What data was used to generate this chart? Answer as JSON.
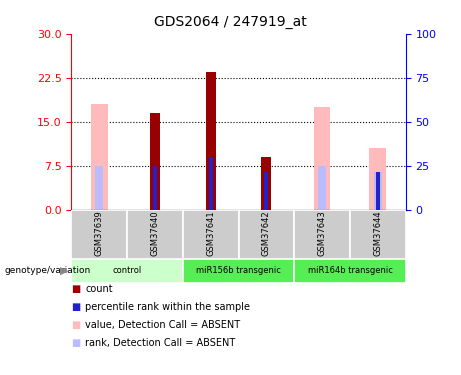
{
  "title": "GDS2064 / 247919_at",
  "samples": [
    "GSM37639",
    "GSM37640",
    "GSM37641",
    "GSM37642",
    "GSM37643",
    "GSM37644"
  ],
  "count_values": [
    0,
    16.5,
    23.5,
    9.0,
    0,
    0
  ],
  "percentile_rank_values": [
    0,
    7.5,
    9.0,
    6.5,
    0,
    6.5
  ],
  "value_absent": [
    18.0,
    0,
    0,
    0,
    17.5,
    10.5
  ],
  "rank_absent": [
    7.5,
    0,
    0,
    0,
    7.5,
    6.5
  ],
  "ylim_left": [
    0,
    30
  ],
  "ylim_right": [
    0,
    100
  ],
  "yticks_left": [
    0,
    7.5,
    15,
    22.5,
    30
  ],
  "yticks_right": [
    0,
    25,
    50,
    75,
    100
  ],
  "count_color": "#990000",
  "percentile_color": "#2222cc",
  "value_absent_color": "#ffbbbb",
  "rank_absent_color": "#bbbbff",
  "sample_box_color": "#cccccc",
  "group_defs": [
    {
      "label": "control",
      "start": 0,
      "end": 1,
      "color": "#ccffcc"
    },
    {
      "label": "miR156b transgenic",
      "start": 2,
      "end": 3,
      "color": "#55ee55"
    },
    {
      "label": "miR164b transgenic",
      "start": 4,
      "end": 5,
      "color": "#55ee55"
    }
  ],
  "legend_items": [
    {
      "color": "#990000",
      "label": "count"
    },
    {
      "color": "#2222cc",
      "label": "percentile rank within the sample"
    },
    {
      "color": "#ffbbbb",
      "label": "value, Detection Call = ABSENT"
    },
    {
      "color": "#bbbbff",
      "label": "rank, Detection Call = ABSENT"
    }
  ]
}
